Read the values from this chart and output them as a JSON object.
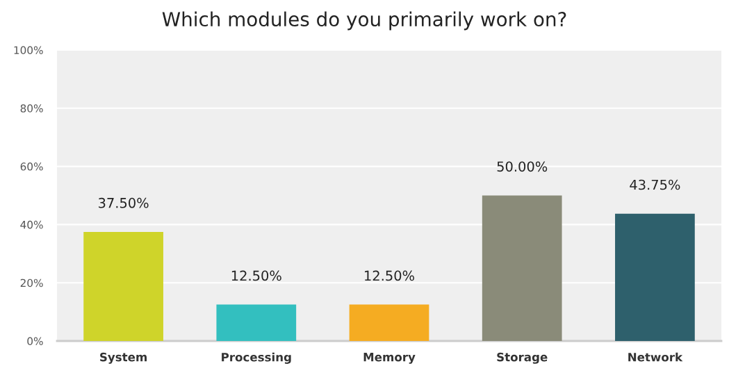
{
  "chart_data": {
    "type": "bar",
    "title": "Which modules do you primarily work on?",
    "categories": [
      "System",
      "Processing",
      "Memory",
      "Storage",
      "Network"
    ],
    "values": [
      37.5,
      12.5,
      12.5,
      50.0,
      43.75
    ],
    "colors": [
      "#cfd42a",
      "#33bfbf",
      "#f5ac22",
      "#8a8b79",
      "#2e606c"
    ],
    "value_labels": [
      "37.50%",
      "12.50%",
      "12.50%",
      "50.00%",
      "43.75%"
    ],
    "ylim": [
      0,
      100
    ],
    "yticks": [
      {
        "value": 0,
        "label": "0%"
      },
      {
        "value": 20,
        "label": "20%"
      },
      {
        "value": 40,
        "label": "40%"
      },
      {
        "value": 60,
        "label": "60%"
      },
      {
        "value": 80,
        "label": "80%"
      },
      {
        "value": 100,
        "label": "100%"
      }
    ],
    "grid": "y"
  }
}
